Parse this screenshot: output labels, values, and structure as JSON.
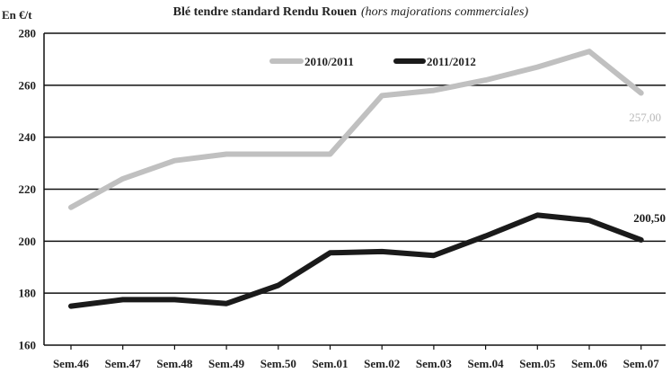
{
  "chart_data": {
    "type": "line",
    "title": "Blé tendre standard Rendu Rouen",
    "subtitle": "(hors majorations commerciales)",
    "ylabel": "En €/t",
    "xlabel": "",
    "ylim": [
      160,
      280
    ],
    "yticks": [
      160,
      180,
      200,
      220,
      240,
      260,
      280
    ],
    "grid": true,
    "legend_position": "top-right",
    "categories": [
      "Sem.46",
      "Sem.47",
      "Sem.48",
      "Sem.49",
      "Sem.50",
      "Sem.01",
      "Sem.02",
      "Sem.03",
      "Sem.04",
      "Sem.05",
      "Sem.06",
      "Sem.07"
    ],
    "series": [
      {
        "name": "2010/2011",
        "color": "#c0c0c0",
        "values": [
          213,
          224,
          231,
          233.5,
          233.5,
          233.5,
          256,
          258,
          262,
          267,
          273,
          257
        ],
        "end_label": "257,00"
      },
      {
        "name": "2011/2012",
        "color": "#1a1a1a",
        "values": [
          175,
          177.5,
          177.5,
          176,
          183,
          195.5,
          196,
          194.5,
          202,
          210,
          208,
          200.5
        ],
        "end_label": "200,50"
      }
    ]
  }
}
